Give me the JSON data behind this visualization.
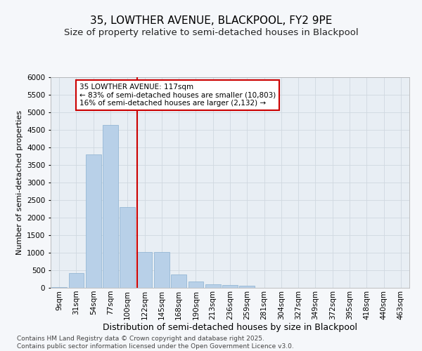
{
  "title1": "35, LOWTHER AVENUE, BLACKPOOL, FY2 9PE",
  "title2": "Size of property relative to semi-detached houses in Blackpool",
  "xlabel": "Distribution of semi-detached houses by size in Blackpool",
  "ylabel": "Number of semi-detached properties",
  "bin_labels": [
    "9sqm",
    "31sqm",
    "54sqm",
    "77sqm",
    "100sqm",
    "122sqm",
    "145sqm",
    "168sqm",
    "190sqm",
    "213sqm",
    "236sqm",
    "259sqm",
    "281sqm",
    "304sqm",
    "327sqm",
    "349sqm",
    "372sqm",
    "395sqm",
    "418sqm",
    "440sqm",
    "463sqm"
  ],
  "bar_values": [
    30,
    430,
    3800,
    4650,
    2300,
    1020,
    1020,
    390,
    180,
    100,
    90,
    70,
    10,
    4,
    2,
    1,
    1,
    0,
    0,
    0,
    0
  ],
  "bar_color": "#b8d0e8",
  "bar_edge_color": "#8ab0d0",
  "vline_color": "#cc0000",
  "annotation_title": "35 LOWTHER AVENUE: 117sqm",
  "annotation_line1": "← 83% of semi-detached houses are smaller (10,803)",
  "annotation_line2": "16% of semi-detached houses are larger (2,132) →",
  "ylim": [
    0,
    6000
  ],
  "yticks": [
    0,
    500,
    1000,
    1500,
    2000,
    2500,
    3000,
    3500,
    4000,
    4500,
    5000,
    5500,
    6000
  ],
  "grid_color": "#d0d8e0",
  "fig_bg_color": "#f5f7fa",
  "plot_bg_color": "#e8eef4",
  "footnote": "Contains HM Land Registry data © Crown copyright and database right 2025.\nContains public sector information licensed under the Open Government Licence v3.0.",
  "title1_fontsize": 11,
  "title2_fontsize": 9.5,
  "xlabel_fontsize": 9,
  "ylabel_fontsize": 8,
  "tick_fontsize": 7.5,
  "annotation_fontsize": 7.5,
  "footnote_fontsize": 6.5
}
